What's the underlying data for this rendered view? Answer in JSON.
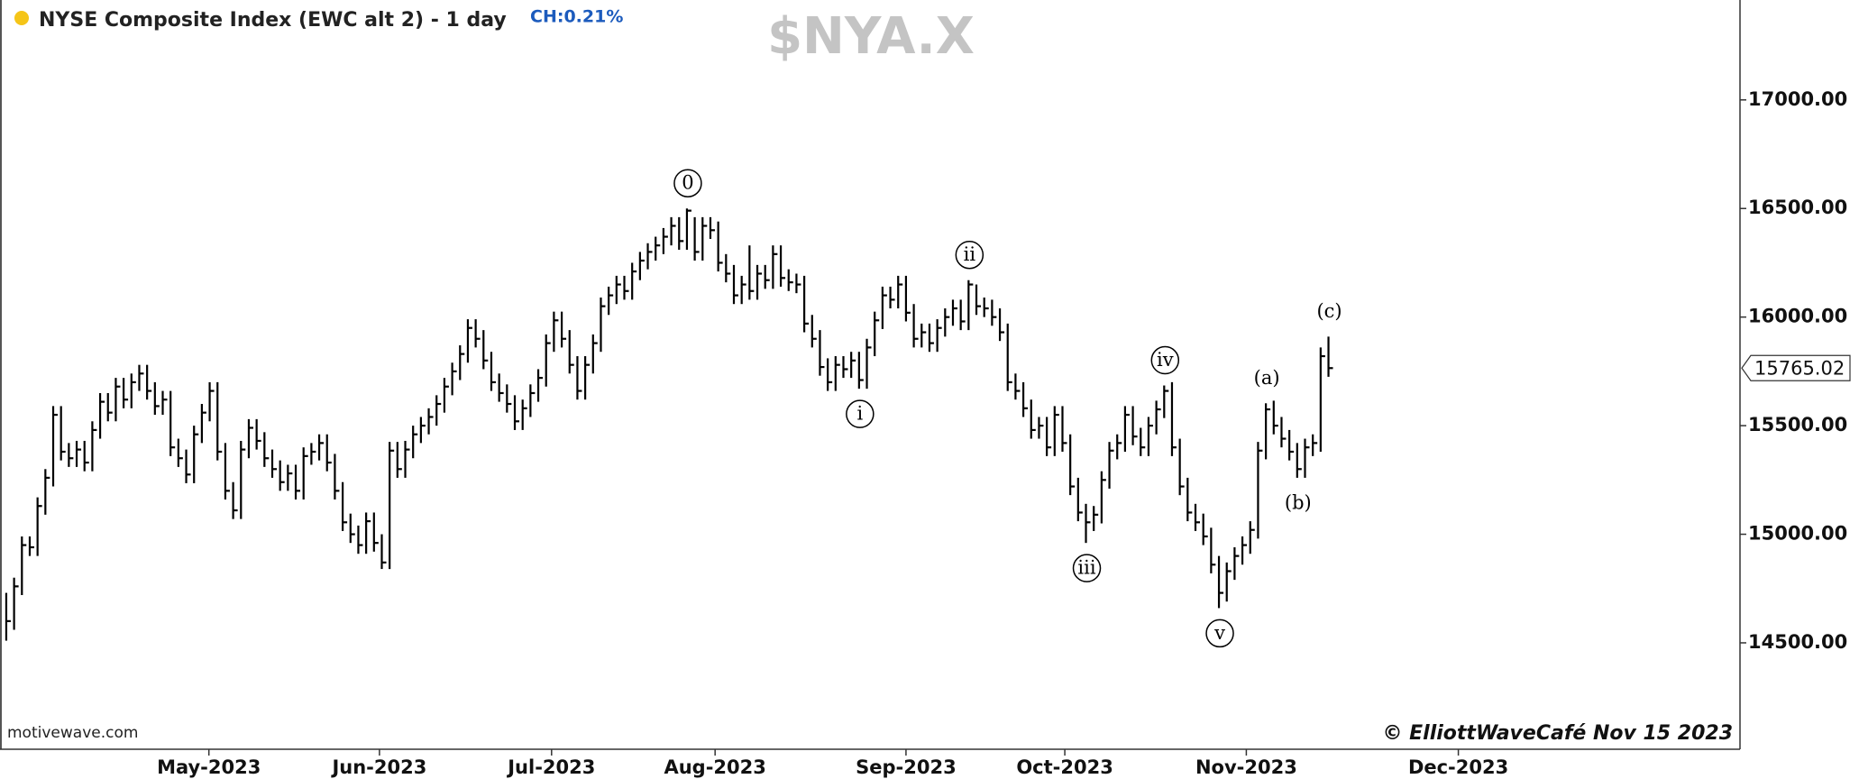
{
  "chart_data": {
    "type": "ohlc",
    "title": "NYSE Composite Index (EWC alt 2) - 1 day",
    "change_label": "CH:0.21%",
    "symbol": "$NYA.X",
    "source": "motivewave.com",
    "copyright": "© ElliottWaveCafé Nov 15 2023",
    "status_color": "#f5c518",
    "series": [
      {
        "color": "#000000",
        "high": [
          14730,
          14800,
          14990,
          14990,
          15170,
          15300,
          15590,
          15590,
          15420,
          15430,
          15430,
          15520,
          15650,
          15650,
          15720,
          15720,
          15740,
          15780,
          15780,
          15700,
          15660,
          15660,
          15440,
          15390,
          15500,
          15600,
          15700,
          15700,
          15420,
          15240,
          15430,
          15530,
          15530,
          15470,
          15390,
          15340,
          15320,
          15320,
          15400,
          15420,
          15460,
          15460,
          15370,
          15240,
          15095,
          15040,
          15100,
          15100,
          15000,
          15425,
          15425,
          15430,
          15500,
          15540,
          15580,
          15640,
          15720,
          15790,
          15870,
          15990,
          15990,
          15940,
          15840,
          15740,
          15690,
          15640,
          15620,
          15690,
          15760,
          15920,
          16025,
          16025,
          15940,
          15820,
          15820,
          15920,
          16090,
          16140,
          16190,
          16190,
          16250,
          16300,
          16340,
          16370,
          16410,
          16460,
          16460,
          16500,
          16460,
          16460,
          16460,
          16440,
          16290,
          16240,
          16190,
          16330,
          16240,
          16240,
          16330,
          16330,
          16220,
          16200,
          16190,
          16010,
          15940,
          15810,
          15820,
          15820,
          15840,
          15840,
          15900,
          16025,
          16140,
          16140,
          16190,
          16190,
          16060,
          15970,
          15970,
          15990,
          16040,
          16080,
          16080,
          16170,
          16150,
          16090,
          16080,
          16040,
          15970,
          15740,
          15700,
          15620,
          15540,
          15540,
          15590,
          15590,
          15460,
          15260,
          15140,
          15130,
          15290,
          15425,
          15460,
          15590,
          15590,
          15490,
          15540,
          15615,
          15685,
          15700,
          15440,
          15260,
          15140,
          15095,
          15030,
          14900,
          14870,
          14940,
          14990,
          15060,
          15425,
          15603,
          15615,
          15540,
          15480,
          15420,
          15440,
          15460,
          15860,
          15910
        ],
        "low": [
          14510,
          14560,
          14720,
          14900,
          14900,
          15090,
          15220,
          15340,
          15310,
          15310,
          15290,
          15290,
          15440,
          15520,
          15520,
          15580,
          15580,
          15660,
          15620,
          15550,
          15550,
          15360,
          15310,
          15235,
          15235,
          15420,
          15520,
          15340,
          15160,
          15070,
          15070,
          15350,
          15390,
          15310,
          15260,
          15200,
          15200,
          15160,
          15160,
          15320,
          15340,
          15290,
          15160,
          15015,
          14960,
          14910,
          14910,
          14920,
          14840,
          14840,
          15260,
          15260,
          15350,
          15420,
          15460,
          15500,
          15560,
          15640,
          15710,
          15790,
          15860,
          15760,
          15660,
          15610,
          15560,
          15480,
          15480,
          15540,
          15610,
          15680,
          15840,
          15860,
          15740,
          15620,
          15620,
          15740,
          15840,
          16010,
          16060,
          16080,
          16080,
          16170,
          16220,
          16260,
          16290,
          16330,
          16310,
          16310,
          16260,
          16260,
          16360,
          16210,
          16160,
          16060,
          16060,
          16080,
          16080,
          16130,
          16130,
          16140,
          16120,
          16110,
          15930,
          15860,
          15730,
          15660,
          15660,
          15720,
          15720,
          15670,
          15670,
          15820,
          15945,
          16040,
          16040,
          15980,
          15860,
          15860,
          15840,
          15840,
          15910,
          15960,
          15940,
          15940,
          16010,
          16000,
          15960,
          15890,
          15660,
          15620,
          15540,
          15440,
          15440,
          15360,
          15360,
          15380,
          15180,
          15060,
          14960,
          15015,
          15050,
          15210,
          15345,
          15380,
          15410,
          15360,
          15360,
          15460,
          15535,
          15360,
          15180,
          15060,
          15015,
          14950,
          14820,
          14660,
          14690,
          14790,
          14860,
          14910,
          14980,
          15345,
          15460,
          15400,
          15340,
          15260,
          15260,
          15360,
          15380,
          15725
        ],
        "close": [
          14600,
          14760,
          14950,
          14940,
          15130,
          15260,
          15550,
          15380,
          15350,
          15390,
          15330,
          15480,
          15610,
          15560,
          15680,
          15620,
          15700,
          15740,
          15660,
          15590,
          15620,
          15400,
          15350,
          15275,
          15460,
          15560,
          15660,
          15380,
          15200,
          15110,
          15390,
          15490,
          15430,
          15350,
          15300,
          15240,
          15280,
          15200,
          15360,
          15380,
          15420,
          15330,
          15200,
          15055,
          15000,
          14950,
          15060,
          14960,
          14870,
          15385,
          15300,
          15390,
          15460,
          15500,
          15540,
          15600,
          15680,
          15750,
          15830,
          15950,
          15900,
          15800,
          15700,
          15650,
          15600,
          15520,
          15580,
          15650,
          15720,
          15880,
          15985,
          15900,
          15780,
          15660,
          15780,
          15880,
          16050,
          16100,
          16150,
          16120,
          16210,
          16260,
          16300,
          16330,
          16370,
          16420,
          16350,
          16490,
          16300,
          16420,
          16400,
          16250,
          16200,
          16100,
          16150,
          16120,
          16200,
          16170,
          16290,
          16180,
          16160,
          16150,
          15970,
          15900,
          15770,
          15700,
          15780,
          15760,
          15800,
          15710,
          15860,
          15985,
          16100,
          16080,
          16150,
          16020,
          15900,
          15930,
          15880,
          15950,
          16000,
          16040,
          15980,
          16150,
          16050,
          16040,
          16000,
          15930,
          15700,
          15660,
          15580,
          15480,
          15500,
          15400,
          15550,
          15420,
          15220,
          15100,
          15055,
          15090,
          15250,
          15385,
          15420,
          15550,
          15450,
          15400,
          15500,
          15575,
          15660,
          15400,
          15220,
          15100,
          15055,
          14990,
          14860,
          14730,
          14830,
          14900,
          14950,
          15020,
          15385,
          15575,
          15500,
          15440,
          15380,
          15300,
          15400,
          15420,
          15820,
          15765.02
        ]
      }
    ],
    "xlim": [
      -0.8,
      221.6
    ],
    "xticks": [
      {
        "value": 25.9,
        "label": "May-2023"
      },
      {
        "value": 47.7,
        "label": "Jun-2023"
      },
      {
        "value": 69.7,
        "label": "Jul-2023"
      },
      {
        "value": 90.6,
        "label": "Aug-2023"
      },
      {
        "value": 115,
        "label": "Sep-2023"
      },
      {
        "value": 135.3,
        "label": "Oct-2023"
      },
      {
        "value": 158.5,
        "label": "Nov-2023"
      },
      {
        "value": 185.6,
        "label": "Dec-2023"
      }
    ],
    "ylim": [
      14010,
      17460
    ],
    "yticks": [
      {
        "value": 14500,
        "label": "14500.00"
      },
      {
        "value": 15000,
        "label": "15000.00"
      },
      {
        "value": 15500,
        "label": "15500.00"
      },
      {
        "value": 16000,
        "label": "16000.00"
      },
      {
        "value": 16500,
        "label": "16500.00"
      },
      {
        "value": 17000,
        "label": "17000.00"
      }
    ],
    "annotations": [
      {
        "text": "0",
        "bar": 87,
        "side": "above",
        "circled": true
      },
      {
        "text": "i",
        "bar": 109,
        "side": "below",
        "circled": true
      },
      {
        "text": "ii",
        "bar": 123,
        "side": "above",
        "circled": true
      },
      {
        "text": "iii",
        "bar": 138,
        "side": "below",
        "circled": true
      },
      {
        "text": "iv",
        "bar": 148,
        "side": "above",
        "circled": true
      },
      {
        "text": "v",
        "bar": 155,
        "side": "below",
        "circled": true
      },
      {
        "text": "(a)",
        "bar": 161,
        "side": "above",
        "circled": false
      },
      {
        "text": "(b)",
        "bar": 165,
        "side": "below",
        "circled": false
      },
      {
        "text": "(c)",
        "bar": 169,
        "side": "above",
        "circled": false
      }
    ]
  }
}
